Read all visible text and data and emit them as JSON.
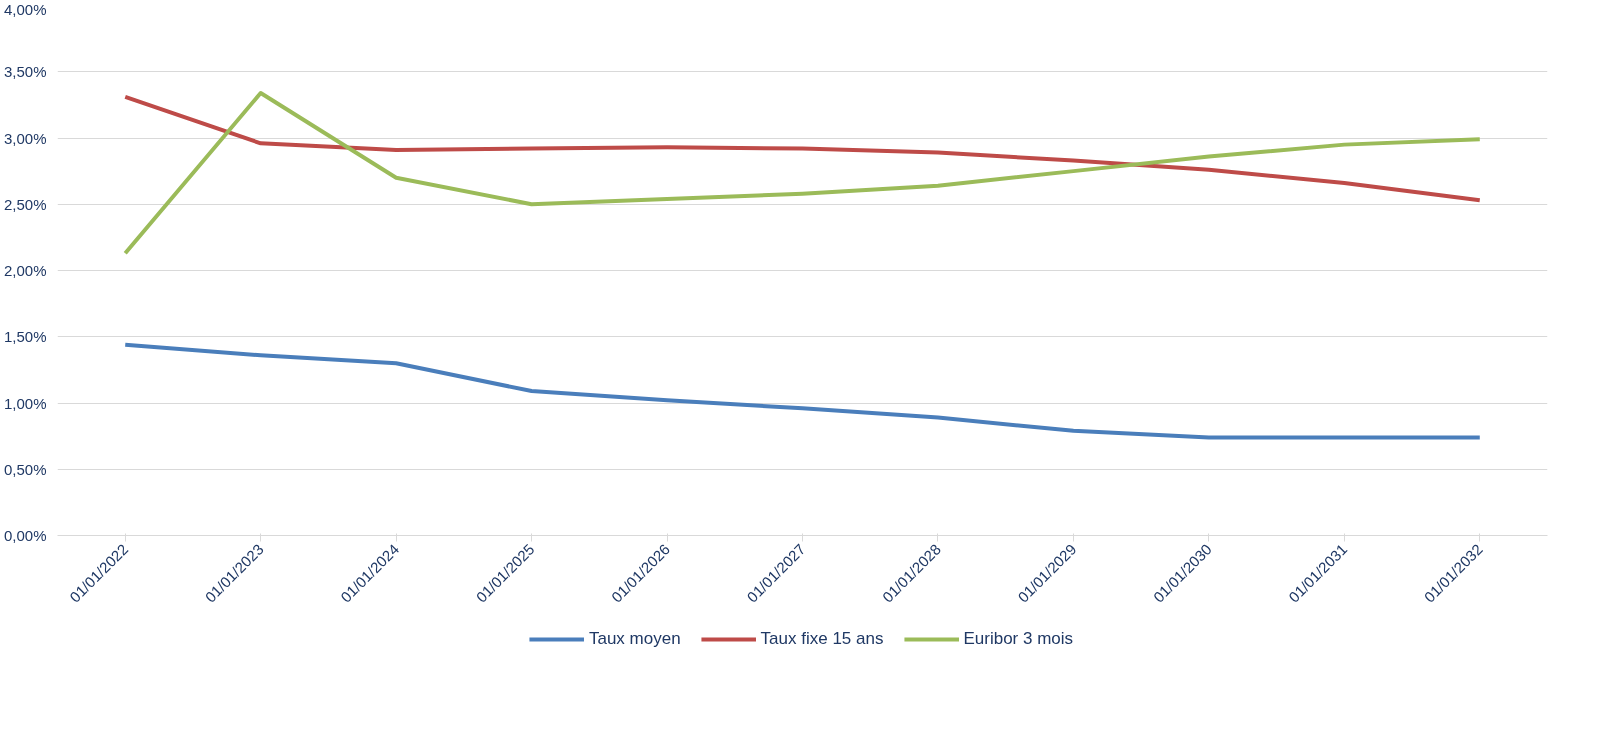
{
  "chart_data": {
    "type": "line",
    "categories": [
      "01/01/2022",
      "01/01/2023",
      "01/01/2024",
      "01/01/2025",
      "01/01/2026",
      "01/01/2027",
      "01/01/2028",
      "01/01/2029",
      "01/01/2030",
      "01/01/2031",
      "01/01/2032"
    ],
    "series": [
      {
        "name": "Taux moyen",
        "color": "#4a7ebb",
        "values": [
          1.44,
          1.36,
          1.3,
          1.09,
          1.02,
          0.96,
          0.89,
          0.79,
          0.74,
          0.74,
          0.74
        ]
      },
      {
        "name": "Taux fixe 15 ans",
        "color": "#be4b48",
        "values": [
          3.31,
          2.96,
          2.91,
          2.92,
          2.93,
          2.92,
          2.89,
          2.83,
          2.76,
          2.66,
          2.53
        ]
      },
      {
        "name": "Euribor 3 mois",
        "color": "#9bbb59",
        "values": [
          2.13,
          3.34,
          2.7,
          2.5,
          2.54,
          2.58,
          2.64,
          2.75,
          2.86,
          2.95,
          2.99
        ]
      }
    ],
    "ylim": [
      0,
      4
    ],
    "yticks": [
      {
        "value": 0,
        "label": "0,00%"
      },
      {
        "value": 0.5,
        "label": "0,50%"
      },
      {
        "value": 1,
        "label": "1,00%"
      },
      {
        "value": 1.5,
        "label": "1,50%"
      },
      {
        "value": 2,
        "label": "2,00%"
      },
      {
        "value": 2.5,
        "label": "2,50%"
      },
      {
        "value": 3,
        "label": "3,00%"
      },
      {
        "value": 3.5,
        "label": "3,50%"
      },
      {
        "value": 4,
        "label": "4,00%"
      }
    ],
    "grid": "y",
    "legend": "bottom",
    "marker": "none",
    "line_style": "solid"
  }
}
